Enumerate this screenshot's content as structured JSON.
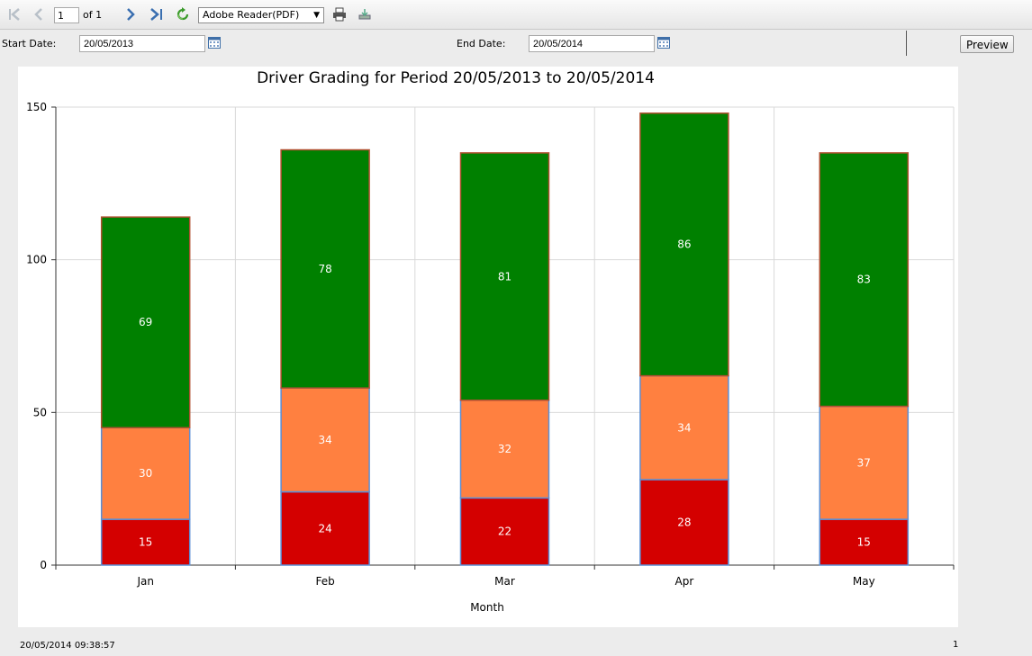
{
  "toolbar": {
    "page_current": "1",
    "page_of": "of 1",
    "export_format": "Adobe Reader(PDF)"
  },
  "params": {
    "start_label": "Start Date:",
    "start_value": "20/05/2013",
    "end_label": "End Date:",
    "end_value": "20/05/2014",
    "preview_label": "Preview"
  },
  "report": {
    "timestamp": "20/05/2014 09:38:57",
    "page_number": "1"
  },
  "chart_data": {
    "type": "bar",
    "stacked": true,
    "title": "Driver Grading for Period 20/05/2013 to 20/05/2014",
    "xlabel": "Month",
    "ylabel": "",
    "categories": [
      "Jan",
      "Feb",
      "Mar",
      "Apr",
      "May"
    ],
    "ylim": [
      0,
      150
    ],
    "yticks": [
      0,
      50,
      100,
      150
    ],
    "grid": true,
    "legend": "none",
    "series": [
      {
        "values": [
          15,
          24,
          22,
          28,
          15
        ],
        "color": "#d40000"
      },
      {
        "values": [
          30,
          34,
          32,
          34,
          37
        ],
        "color": "#ff8040"
      },
      {
        "values": [
          69,
          78,
          81,
          86,
          83
        ],
        "color": "#008000"
      }
    ]
  }
}
